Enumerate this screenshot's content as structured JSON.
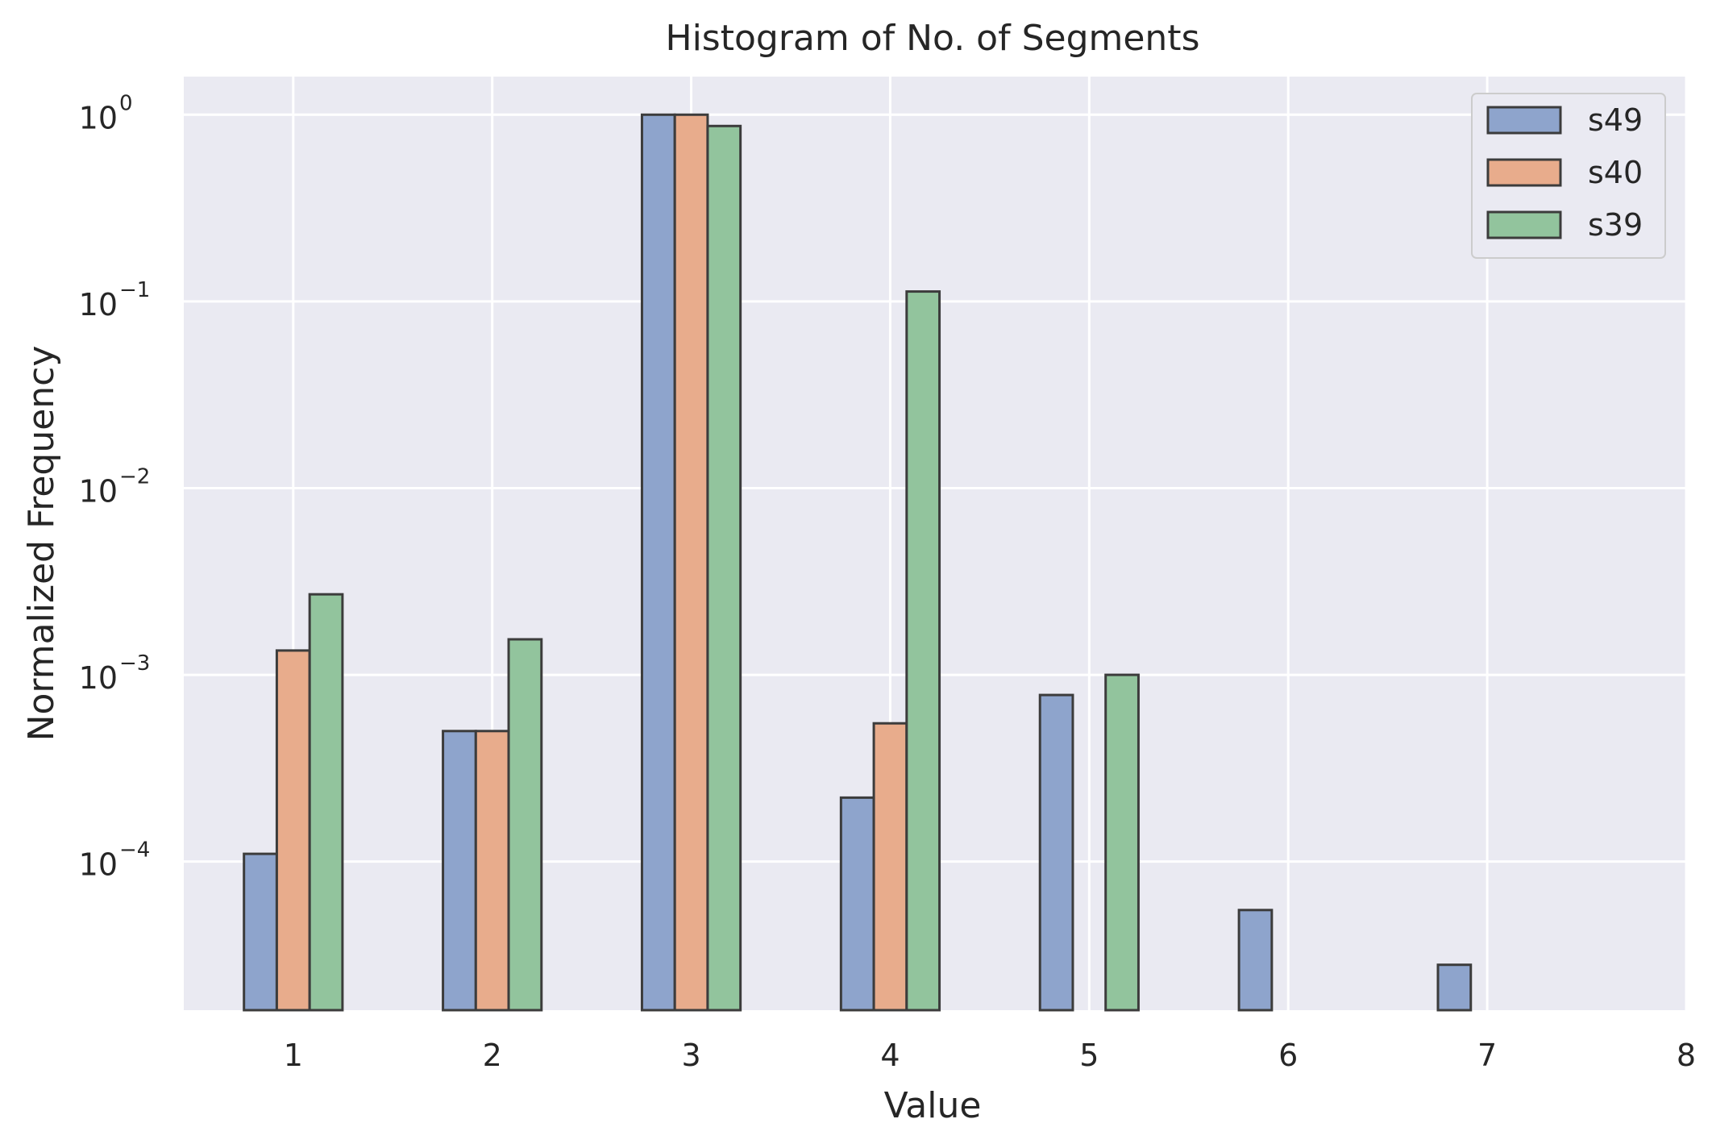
{
  "chart_data": {
    "type": "bar",
    "title": "Histogram of No. of Segments",
    "xlabel": "Value",
    "ylabel": "Normalized Frequency",
    "y_scale": "log",
    "ylim": [
      1.6e-05,
      1.6
    ],
    "xlim": [
      0.45,
      8.0
    ],
    "x_ticks": [
      1,
      2,
      3,
      4,
      5,
      6,
      7,
      8
    ],
    "x_tick_labels": [
      "1",
      "2",
      "3",
      "4",
      "5",
      "6",
      "7",
      "8"
    ],
    "y_ticks": [
      0.0001,
      0.001,
      0.01,
      0.1,
      1
    ],
    "y_tick_labels": [
      {
        "base": "10",
        "exp": "−4"
      },
      {
        "base": "10",
        "exp": "−3"
      },
      {
        "base": "10",
        "exp": "−2"
      },
      {
        "base": "10",
        "exp": "−1"
      },
      {
        "base": "10",
        "exp": "0"
      }
    ],
    "grid": true,
    "legend_position": "top-right",
    "categories": [
      1,
      2,
      3,
      4,
      5,
      6,
      7
    ],
    "series": [
      {
        "name": "s49",
        "color": "#8ea4cc",
        "x": [
          1,
          2,
          3,
          4,
          5,
          6,
          7
        ],
        "values": [
          0.00011,
          0.0005,
          1.0,
          0.00022,
          0.00078,
          5.5e-05,
          2.8e-05
        ]
      },
      {
        "name": "s40",
        "color": "#e8ac8c",
        "x": [
          1,
          2,
          3,
          4
        ],
        "values": [
          0.00135,
          0.0005,
          1.0,
          0.00055
        ]
      },
      {
        "name": "s39",
        "color": "#92c49d",
        "x": [
          1,
          2,
          3,
          4,
          5
        ],
        "values": [
          0.0027,
          0.00155,
          0.87,
          0.113,
          0.001
        ]
      }
    ]
  }
}
